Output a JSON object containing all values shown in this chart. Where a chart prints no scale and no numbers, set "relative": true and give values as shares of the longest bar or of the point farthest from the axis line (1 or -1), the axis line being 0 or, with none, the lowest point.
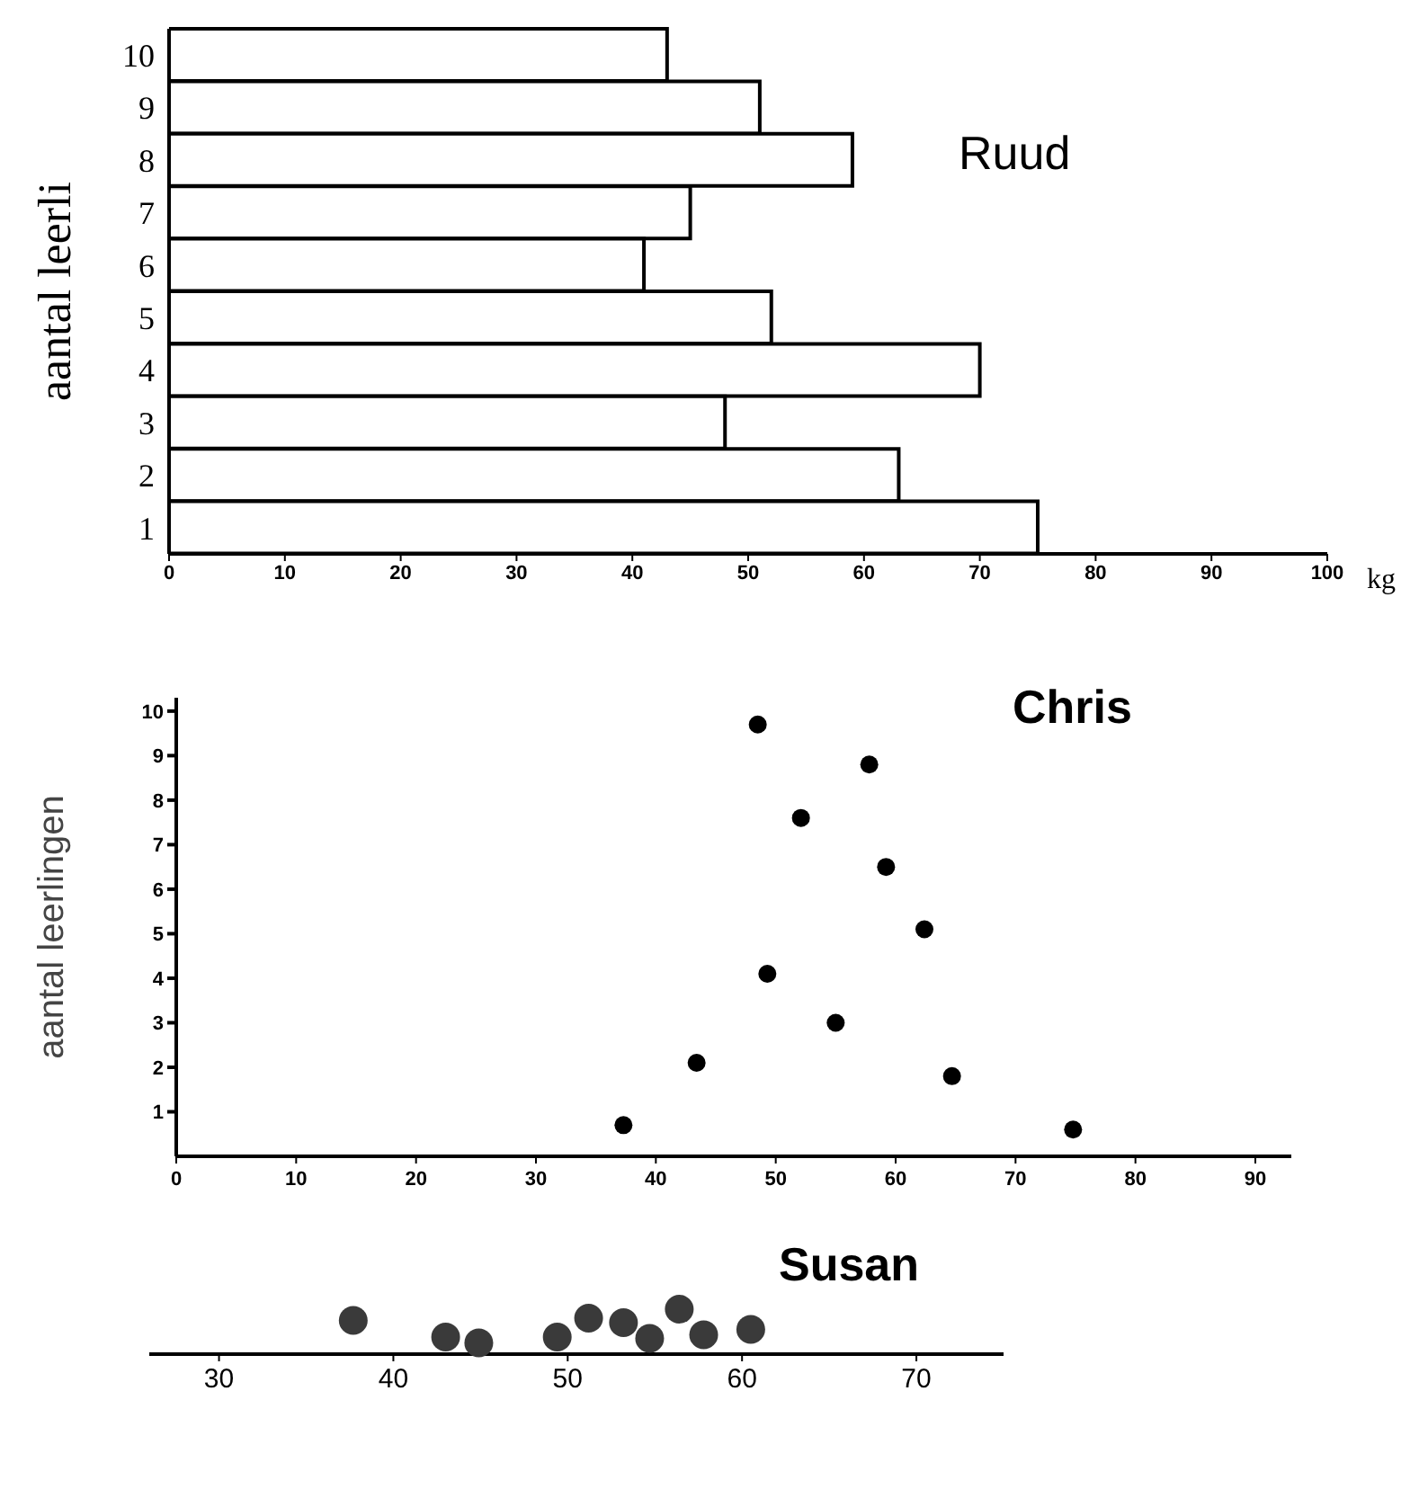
{
  "chart_data": [
    {
      "type": "bar",
      "orientation": "horizontal",
      "title": "Ruud",
      "ylabel": "aantal leerli",
      "xlabel": "kg",
      "categories": [
        "10",
        "9",
        "8",
        "7",
        "6",
        "5",
        "4",
        "3",
        "2",
        "1"
      ],
      "values": [
        43,
        51,
        59,
        45,
        41,
        52,
        70,
        48,
        63,
        75
      ],
      "color": "#ffffff",
      "xlim": [
        0,
        100
      ],
      "xticks": [
        0,
        10,
        20,
        30,
        40,
        50,
        60,
        70,
        80,
        90,
        100
      ]
    },
    {
      "type": "scatter",
      "title": "Chris",
      "ylabel": "aantal leerlingen",
      "x": [
        48.5,
        57.8,
        52.1,
        59.2,
        62.4,
        49.3,
        55.0,
        43.4,
        64.7,
        37.3,
        74.8
      ],
      "values": [
        9.7,
        8.8,
        7.6,
        6.5,
        5.1,
        4.1,
        3.0,
        2.1,
        1.8,
        0.7,
        0.6
      ],
      "color": "#000000",
      "marker": "circle",
      "xlim": [
        0,
        93
      ],
      "xticks": [
        0,
        10,
        20,
        30,
        40,
        50,
        60,
        70,
        80,
        90
      ],
      "ylim": [
        0,
        10.3
      ],
      "yticks": [
        1,
        2,
        3,
        4,
        5,
        6,
        7,
        8,
        9,
        10
      ]
    },
    {
      "type": "scatter",
      "title": "Susan",
      "relative": true,
      "x": [
        37.7,
        43.0,
        44.9,
        49.4,
        51.2,
        53.2,
        54.7,
        56.4,
        57.8,
        60.5
      ],
      "values": [
        0.75,
        0.38,
        0.25,
        0.38,
        0.8,
        0.7,
        0.35,
        1,
        0.43,
        0.55
      ],
      "color": "#3a3a3a",
      "marker": "circle",
      "xlim": [
        26,
        75
      ],
      "xticks": [
        30,
        40,
        50,
        60,
        70
      ]
    }
  ]
}
